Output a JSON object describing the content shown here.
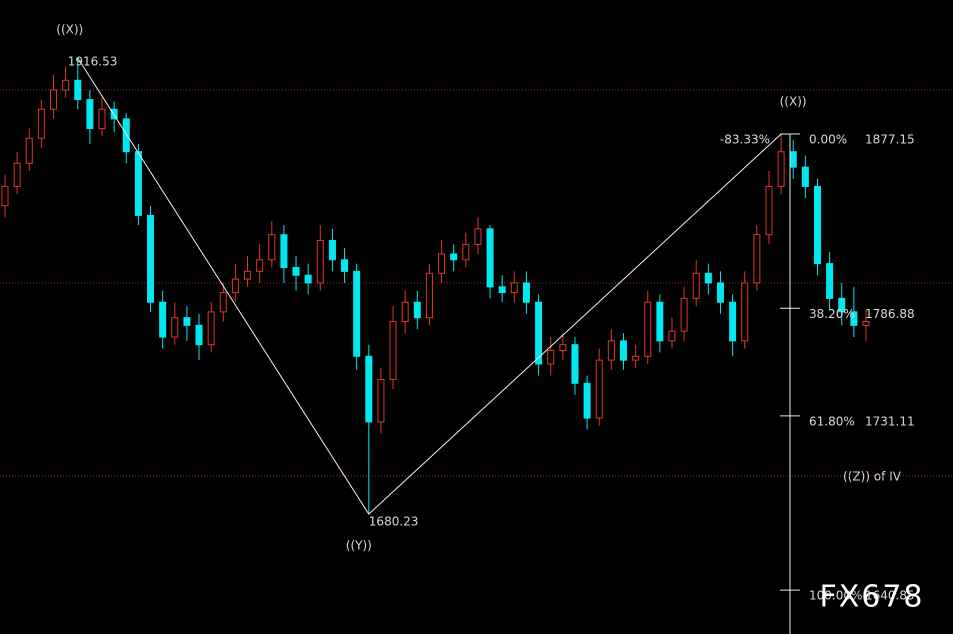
{
  "chart_data": {
    "type": "candlestick",
    "ylim": [
      1618.1,
      1946.6
    ],
    "grid_levels": [
      1700,
      1800,
      1900
    ],
    "up_color": "#e0352b",
    "down_color": "#00e8f0",
    "open": [
      1840,
      1850,
      1862,
      1875,
      1890,
      1900,
      1905,
      1895,
      1880,
      1890,
      1885,
      1868,
      1835,
      1790,
      1772,
      1782,
      1778,
      1768,
      1785,
      1795,
      1802,
      1806,
      1812,
      1825,
      1808,
      1804,
      1800,
      1822,
      1812,
      1806,
      1762,
      1728,
      1750,
      1780,
      1790,
      1782,
      1805,
      1815,
      1812,
      1820,
      1828,
      1798,
      1795,
      1800,
      1790,
      1758,
      1765,
      1768,
      1748,
      1730,
      1760,
      1770,
      1760,
      1762,
      1790,
      1770,
      1775,
      1792,
      1805,
      1800,
      1790,
      1770,
      1800,
      1825,
      1850,
      1868,
      1860,
      1850,
      1810,
      1792,
      1785,
      1778
    ],
    "high": [
      1856,
      1868,
      1880,
      1895,
      1908,
      1912,
      1916.53,
      1900,
      1896,
      1894,
      1888,
      1872,
      1840,
      1796,
      1790,
      1788,
      1784,
      1790,
      1800,
      1810,
      1814,
      1820,
      1832,
      1830,
      1814,
      1810,
      1830,
      1828,
      1818,
      1810,
      1768,
      1756,
      1788,
      1796,
      1796,
      1810,
      1822,
      1820,
      1826,
      1834,
      1830,
      1804,
      1806,
      1806,
      1794,
      1772,
      1774,
      1772,
      1752,
      1766,
      1776,
      1774,
      1768,
      1796,
      1794,
      1782,
      1798,
      1812,
      1810,
      1806,
      1794,
      1806,
      1830,
      1858,
      1877.15,
      1874,
      1866,
      1854,
      1816,
      1800,
      1798,
      1786
    ],
    "low": [
      1834,
      1846,
      1858,
      1870,
      1885,
      1896,
      1890,
      1872,
      1876,
      1878,
      1862,
      1830,
      1785,
      1766,
      1768,
      1770,
      1760,
      1764,
      1780,
      1790,
      1798,
      1800,
      1808,
      1800,
      1796,
      1794,
      1796,
      1806,
      1800,
      1755,
      1680.23,
      1722,
      1745,
      1774,
      1776,
      1778,
      1800,
      1806,
      1808,
      1815,
      1792,
      1790,
      1790,
      1784,
      1752,
      1752,
      1760,
      1742,
      1724,
      1726,
      1755,
      1755,
      1756,
      1758,
      1764,
      1766,
      1770,
      1788,
      1794,
      1784,
      1762,
      1766,
      1796,
      1820,
      1846,
      1854,
      1844,
      1804,
      1786,
      1778,
      1772,
      1770
    ],
    "close": [
      1850,
      1862,
      1875,
      1890,
      1900,
      1905,
      1895,
      1880,
      1890,
      1885,
      1868,
      1835,
      1790,
      1772,
      1782,
      1778,
      1768,
      1785,
      1795,
      1802,
      1806,
      1812,
      1825,
      1808,
      1804,
      1800,
      1822,
      1812,
      1806,
      1762,
      1728,
      1750,
      1780,
      1790,
      1782,
      1805,
      1815,
      1812,
      1820,
      1828,
      1798,
      1795,
      1800,
      1790,
      1758,
      1765,
      1768,
      1748,
      1730,
      1760,
      1770,
      1760,
      1762,
      1790,
      1770,
      1775,
      1792,
      1805,
      1800,
      1790,
      1770,
      1800,
      1825,
      1850,
      1868,
      1860,
      1850,
      1810,
      1792,
      1785,
      1778,
      1780
    ],
    "waves": [
      {
        "label": "((X))",
        "price": 1916.53
      },
      {
        "label": "((Y))",
        "price": 1680.23
      },
      {
        "label": "((X))",
        "price": 1877.15
      }
    ],
    "fib": {
      "extension_label": "-83.33%",
      "levels": [
        {
          "ratio": "0.00%",
          "price": 1877.15
        },
        {
          "ratio": "38.20%",
          "price": 1786.88
        },
        {
          "ratio": "61.80%",
          "price": 1731.11
        },
        {
          "ratio": "100.00%",
          "price": 1640.85
        }
      ]
    },
    "annotation": "((Z)) of IV",
    "watermark": "FX678"
  }
}
